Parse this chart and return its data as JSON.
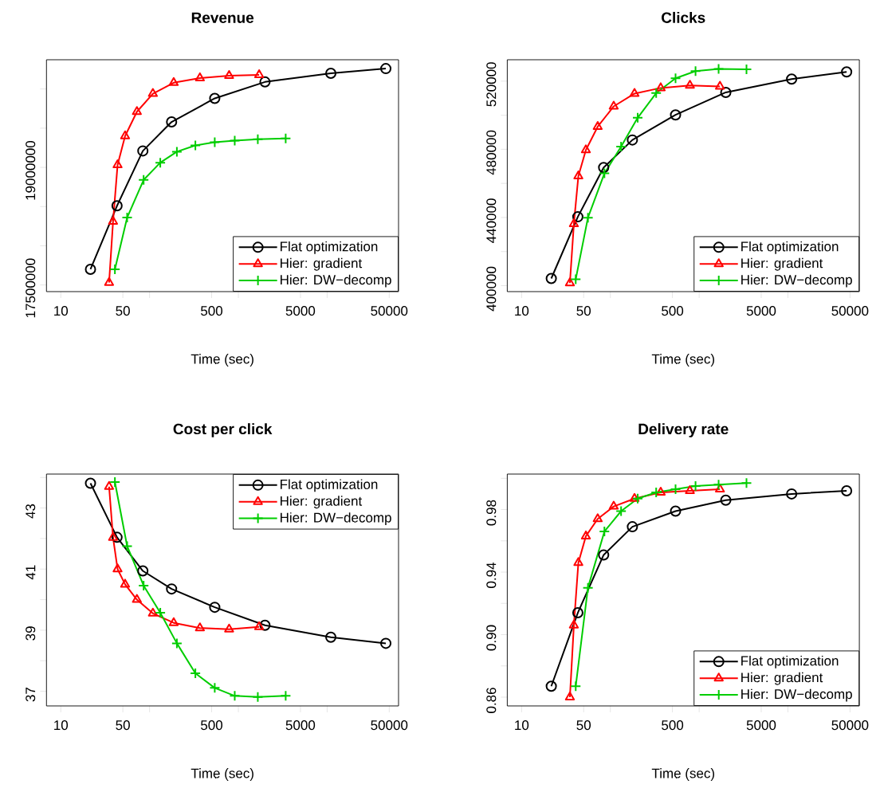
{
  "chart_data": [
    {
      "type": "line",
      "title": "Revenue",
      "xlabel": "Time (sec)",
      "log": "x",
      "legend": "bottom right",
      "line_style": "solid",
      "xlim": [
        6.9,
        63700
      ],
      "xticks": [
        10,
        50,
        {
          "value": 100,
          "label": null
        },
        500,
        {
          "value": 1000,
          "label": null
        },
        5000,
        {
          "value": 10000,
          "label": null
        },
        50000
      ],
      "ylim": [
        17415000,
        20373000
      ],
      "yticks": [
        17500000,
        {
          "value": 18000000,
          "label": null
        },
        {
          "value": 18500000,
          "label": null
        },
        19000000,
        {
          "value": 19500000,
          "label": null
        },
        {
          "value": 20000000,
          "label": null
        }
      ],
      "series": [
        {
          "name": "Flat optimization",
          "color": "#000000",
          "marker": "circle",
          "x": [
            21.6,
            43,
            84,
            177,
            542,
            1995,
            11000,
            45800
          ],
          "values": [
            17700000,
            18510000,
            19210000,
            19580000,
            19880000,
            20090000,
            20200000,
            20260000
          ]
        },
        {
          "name": "Hier: gradient",
          "color": "#ff0000",
          "marker": "triangle",
          "x": [
            35,
            38.8,
            43.6,
            53,
            72,
            109,
            187,
            369,
            787,
            1714
          ],
          "values": [
            17530000,
            18310000,
            19030000,
            19400000,
            19710000,
            19940000,
            20080000,
            20140000,
            20170000,
            20180000
          ]
        },
        {
          "name": "Hier: DW−decomp",
          "color": "#00cd00",
          "marker": "cross",
          "x": [
            40.7,
            55.9,
            85.7,
            132,
            203,
            328,
            542,
            910,
            1656,
            3412
          ],
          "values": [
            17700000,
            18360000,
            18840000,
            19060000,
            19200000,
            19280000,
            19320000,
            19340000,
            19360000,
            19370000
          ]
        }
      ]
    },
    {
      "type": "line",
      "title": "Clicks",
      "xlabel": "Time (sec)",
      "log": "x",
      "legend": "bottom right",
      "line_style": "solid",
      "xlim": [
        6.9,
        63700
      ],
      "xticks": [
        10,
        50,
        {
          "value": 100,
          "label": null
        },
        500,
        {
          "value": 1000,
          "label": null
        },
        5000,
        {
          "value": 10000,
          "label": null
        },
        50000
      ],
      "ylim": [
        396500,
        532550
      ],
      "yticks": [
        400000,
        {
          "value": 420000,
          "label": null
        },
        440000,
        {
          "value": 460000,
          "label": null
        },
        480000,
        {
          "value": 500000,
          "label": null
        },
        520000
      ],
      "series": [
        {
          "name": "Flat optimization",
          "color": "#000000",
          "marker": "circle",
          "x": [
            21.6,
            43,
            84,
            177,
            542,
            1995,
            11000,
            45800
          ],
          "values": [
            404200,
            440400,
            469300,
            485500,
            500200,
            513400,
            521200,
            525400
          ]
        },
        {
          "name": "Hier: gradient",
          "color": "#ff0000",
          "marker": "triangle",
          "x": [
            35,
            38.8,
            43.6,
            53,
            72,
            109,
            187,
            369,
            787,
            1714
          ],
          "values": [
            401500,
            436200,
            464300,
            479600,
            493300,
            505200,
            512700,
            516000,
            517500,
            516900
          ]
        },
        {
          "name": "Hier: DW−decomp",
          "color": "#00cd00",
          "marker": "cross",
          "x": [
            40.7,
            55.9,
            85.7,
            132,
            203,
            328,
            542,
            910,
            1656,
            3412
          ],
          "values": [
            403700,
            439900,
            465900,
            481600,
            498500,
            513000,
            521700,
            525900,
            527200,
            526900
          ]
        }
      ]
    },
    {
      "type": "line",
      "title": "Cost per click",
      "xlabel": "Time (sec)",
      "log": "x",
      "legend": "top right",
      "line_style": "solid",
      "xlim": [
        6.9,
        63700
      ],
      "xticks": [
        10,
        50,
        {
          "value": 100,
          "label": null
        },
        500,
        {
          "value": 1000,
          "label": null
        },
        5000,
        {
          "value": 10000,
          "label": null
        },
        50000
      ],
      "ylim": [
        36.52,
        44.11
      ],
      "yticks": [
        37,
        {
          "value": 38,
          "label": null
        },
        39,
        {
          "value": 40,
          "label": null
        },
        41,
        {
          "value": 42,
          "label": null
        },
        43,
        {
          "value": 44,
          "label": null
        }
      ],
      "series": [
        {
          "name": "Flat optimization",
          "color": "#000000",
          "marker": "circle",
          "x": [
            21.6,
            43,
            84,
            177,
            542,
            1995,
            11000,
            45800
          ],
          "values": [
            43.81,
            42.04,
            40.94,
            40.35,
            39.75,
            39.16,
            38.77,
            38.57
          ]
        },
        {
          "name": "Hier: gradient",
          "color": "#ff0000",
          "marker": "triangle",
          "x": [
            35,
            38.8,
            43.6,
            53,
            72,
            109,
            187,
            369,
            787,
            1714
          ],
          "values": [
            43.7,
            42.03,
            41.0,
            40.5,
            40.0,
            39.55,
            39.24,
            39.07,
            39.03,
            39.11
          ]
        },
        {
          "name": "Hier: DW−decomp",
          "color": "#00cd00",
          "marker": "cross",
          "x": [
            40.7,
            55.9,
            85.7,
            132,
            203,
            328,
            542,
            910,
            1656,
            3412
          ],
          "values": [
            43.85,
            41.75,
            40.46,
            39.57,
            38.57,
            37.59,
            37.11,
            36.85,
            36.81,
            36.85
          ]
        }
      ]
    },
    {
      "type": "line",
      "title": "Delivery rate",
      "xlabel": "Time (sec)",
      "log": "x",
      "legend": "bottom right",
      "line_style": "solid",
      "xlim": [
        6.9,
        63700
      ],
      "xticks": [
        10,
        50,
        {
          "value": 100,
          "label": null
        },
        500,
        {
          "value": 1000,
          "label": null
        },
        5000,
        {
          "value": 10000,
          "label": null
        },
        50000
      ],
      "ylim": [
        0.8544,
        1.0027
      ],
      "yticks": [
        0.86,
        {
          "value": 0.88,
          "label": null
        },
        {
          "value": 0.9,
          "label": "0.90"
        },
        {
          "value": 0.92,
          "label": null
        },
        0.94,
        {
          "value": 0.96,
          "label": null
        },
        0.98,
        {
          "value": 1.0,
          "label": null
        }
      ],
      "series": [
        {
          "name": "Flat optimization",
          "color": "#000000",
          "marker": "circle",
          "x": [
            21.6,
            43,
            84,
            177,
            542,
            1995,
            11000,
            45800
          ],
          "values": [
            0.867,
            0.914,
            0.951,
            0.969,
            0.979,
            0.986,
            0.99,
            0.992
          ]
        },
        {
          "name": "Hier: gradient",
          "color": "#ff0000",
          "marker": "triangle",
          "x": [
            35,
            38.8,
            43.6,
            53,
            72,
            109,
            187,
            369,
            787,
            1714
          ],
          "values": [
            0.86,
            0.906,
            0.946,
            0.963,
            0.974,
            0.982,
            0.987,
            0.991,
            0.992,
            0.993
          ]
        },
        {
          "name": "Hier: DW−decomp",
          "color": "#00cd00",
          "marker": "cross",
          "x": [
            40.7,
            55.9,
            85.7,
            132,
            203,
            328,
            542,
            910,
            1656,
            3412
          ],
          "values": [
            0.867,
            0.93,
            0.966,
            0.979,
            0.987,
            0.991,
            0.993,
            0.995,
            0.996,
            0.997
          ]
        }
      ]
    }
  ]
}
